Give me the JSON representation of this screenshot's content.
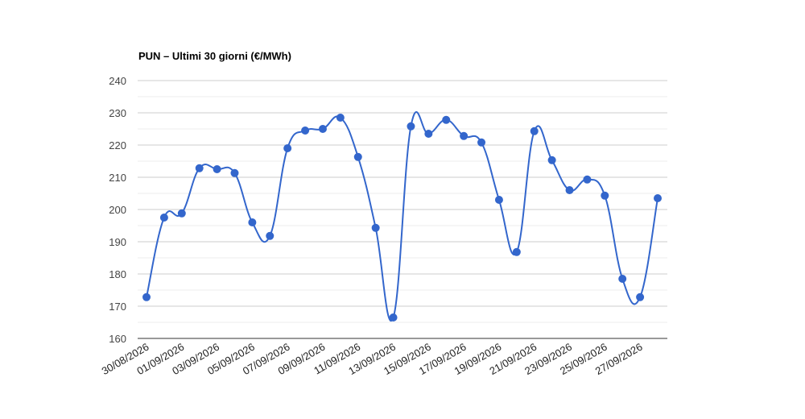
{
  "chart_data": {
    "type": "line",
    "title": "PUN – Ultimi 30 giorni (€/MWh)",
    "xlabel": "",
    "ylabel": "",
    "ylim": [
      160,
      240
    ],
    "yticks": [
      160,
      170,
      180,
      190,
      200,
      210,
      220,
      230,
      240
    ],
    "grid": true,
    "legend": "none",
    "curve": "smooth",
    "line_color": "#3366cc",
    "point_color": "#3366cc",
    "x": [
      "30/08/2026",
      "31/08/2026",
      "01/09/2026",
      "02/09/2026",
      "03/09/2026",
      "04/09/2026",
      "05/09/2026",
      "06/09/2026",
      "07/09/2026",
      "08/09/2026",
      "09/09/2026",
      "10/09/2026",
      "11/09/2026",
      "12/09/2026",
      "13/09/2026",
      "14/09/2026",
      "15/09/2026",
      "16/09/2026",
      "17/09/2026",
      "18/09/2026",
      "19/09/2026",
      "20/09/2026",
      "21/09/2026",
      "22/09/2026",
      "23/09/2026",
      "24/09/2026",
      "25/09/2026",
      "26/09/2026",
      "27/09/2026",
      "28/09/2026"
    ],
    "x_tick_labels": [
      "30/08/2026",
      "01/09/2026",
      "03/09/2026",
      "05/09/2026",
      "07/09/2026",
      "09/09/2026",
      "11/09/2026",
      "13/09/2026",
      "15/09/2026",
      "17/09/2026",
      "19/09/2026",
      "21/09/2026",
      "23/09/2026",
      "25/09/2026",
      "27/09/2026"
    ],
    "series": [
      {
        "values": [
          172.8,
          197.5,
          198.8,
          212.8,
          212.5,
          211.3,
          196.0,
          191.8,
          219.0,
          224.5,
          225.0,
          228.5,
          216.3,
          194.3,
          166.5,
          225.8,
          223.5,
          227.8,
          222.8,
          220.8,
          203.0,
          186.8,
          224.3,
          215.3,
          206.0,
          209.3,
          204.3,
          178.5,
          172.8,
          203.5
        ]
      }
    ]
  }
}
